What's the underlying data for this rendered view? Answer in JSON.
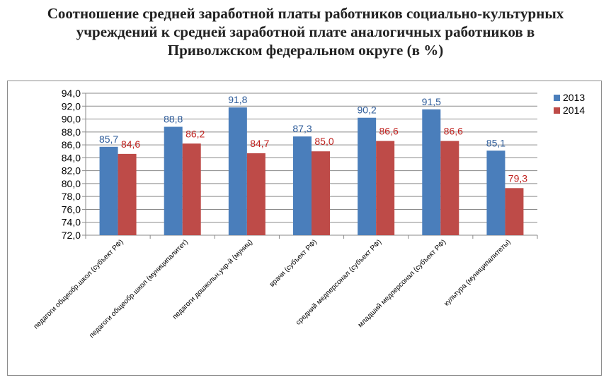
{
  "title_lines": [
    "Соотношение средней заработной платы работников социально-культурных",
    "учреждений к средней заработной плате аналогичных работников в",
    "Приволжском федеральном округе (в %)"
  ],
  "chart_data": {
    "type": "bar",
    "title": "Соотношение средней заработной платы работников социально-культурных учреждений к средней заработной плате аналогичных работников в Приволжском федеральном округе (в %)",
    "categories": [
      "педагоги общеобр.школ (субъект РФ)",
      "педагоги общеобр.школ (муниципалитет)",
      "педагоги дошкольн.учр-й (муниц)",
      "врачи (субъект РФ)",
      "средний медперсонал (субъект РФ)",
      "младший медперсонал (субъект РФ)",
      "культура (муниципалитеты)"
    ],
    "series": [
      {
        "name": "2013",
        "color": "#4a7ebb",
        "label_color": "#2e5c9a",
        "values": [
          85.7,
          88.8,
          91.8,
          87.3,
          90.2,
          91.5,
          85.1
        ],
        "labels": [
          "85,7",
          "88,8",
          "91,8",
          "87,3",
          "90,2",
          "91,5",
          "85,1"
        ]
      },
      {
        "name": "2014",
        "color": "#be4b48",
        "label_color": "#c0221f",
        "values": [
          84.6,
          86.2,
          84.7,
          85.0,
          86.6,
          86.6,
          79.3
        ],
        "labels": [
          "84,6",
          "86,2",
          "84,7",
          "85,0",
          "86,6",
          "86,6",
          "79,3"
        ]
      }
    ],
    "ylim": [
      72,
      94
    ],
    "yticks": [
      72,
      74,
      76,
      78,
      80,
      82,
      84,
      86,
      88,
      90,
      92,
      94
    ],
    "ytick_labels": [
      "72,0",
      "74,0",
      "76,0",
      "78,0",
      "80,0",
      "82,0",
      "84,0",
      "86,0",
      "88,0",
      "90,0",
      "92,0",
      "94,0"
    ],
    "xlabel": "",
    "ylabel": "",
    "grid": true,
    "legend": "right"
  }
}
